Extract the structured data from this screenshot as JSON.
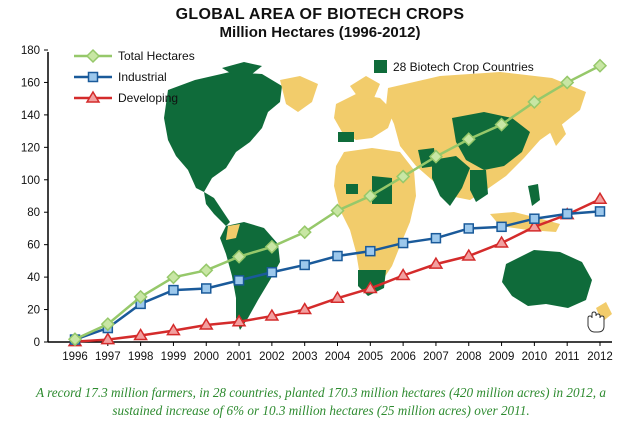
{
  "chart_data": {
    "type": "line",
    "title": "GLOBAL AREA OF BIOTECH CROPS",
    "subtitle": "Million Hectares (1996-2012)",
    "x": [
      "1996",
      "1997",
      "1998",
      "1999",
      "2000",
      "2001",
      "2002",
      "2003",
      "2004",
      "2005",
      "2006",
      "2007",
      "2008",
      "2009",
      "2010",
      "2011",
      "2012"
    ],
    "ylim": [
      0,
      180
    ],
    "yticks": [
      0,
      20,
      40,
      60,
      80,
      100,
      120,
      140,
      160,
      180
    ],
    "grid": false,
    "legend_position": "top-left",
    "series": [
      {
        "name": "Total Hectares",
        "color": "#96c86a",
        "marker": "diamond",
        "values": [
          1.7,
          11,
          27.8,
          39.9,
          44.2,
          52.6,
          58.7,
          67.7,
          81,
          90,
          102,
          114.3,
          125,
          134,
          148,
          160,
          170.3
        ]
      },
      {
        "name": "Industrial",
        "color": "#1a5a9a",
        "marker": "square",
        "values": [
          1.5,
          8.6,
          23.5,
          32,
          33,
          38,
          43,
          47.5,
          53,
          56,
          61,
          64,
          70,
          71,
          76,
          79,
          80.5
        ]
      },
      {
        "name": "Developing",
        "color": "#d42b2b",
        "marker": "triangle",
        "values": [
          0.2,
          1.5,
          4,
          7,
          10.5,
          12.5,
          16,
          20,
          27,
          33,
          41,
          48,
          53,
          61,
          71,
          78.5,
          88
        ]
      }
    ],
    "map_legend": {
      "label": "28 Biotech Crop Countries",
      "color": "#0f6b3a"
    }
  },
  "caption": "A record 17.3 million farmers, in 28 countries, planted 170.3 million hectares (420 million acres) in 2012, a sustained increase of 6% or 10.3 million hectares (25 million acres) over 2011.",
  "colors": {
    "map_land": "#f2cc6b",
    "map_biotech": "#0f6b3a",
    "caption": "#2e8b30"
  }
}
